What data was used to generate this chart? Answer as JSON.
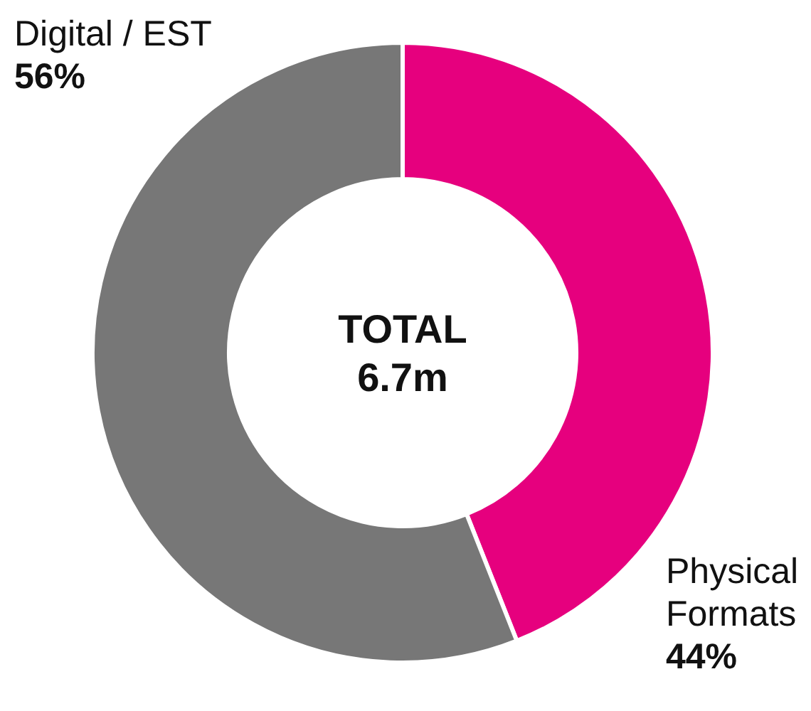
{
  "chart_data": {
    "type": "donut",
    "categories": [
      "Physical Formats",
      "Digital / EST"
    ],
    "values": [
      44,
      56
    ],
    "colors": [
      "#e6007e",
      "#777777"
    ],
    "value_labels": [
      "44%",
      "56%"
    ],
    "annotations": [
      "TOTAL",
      "6.7m"
    ]
  }
}
